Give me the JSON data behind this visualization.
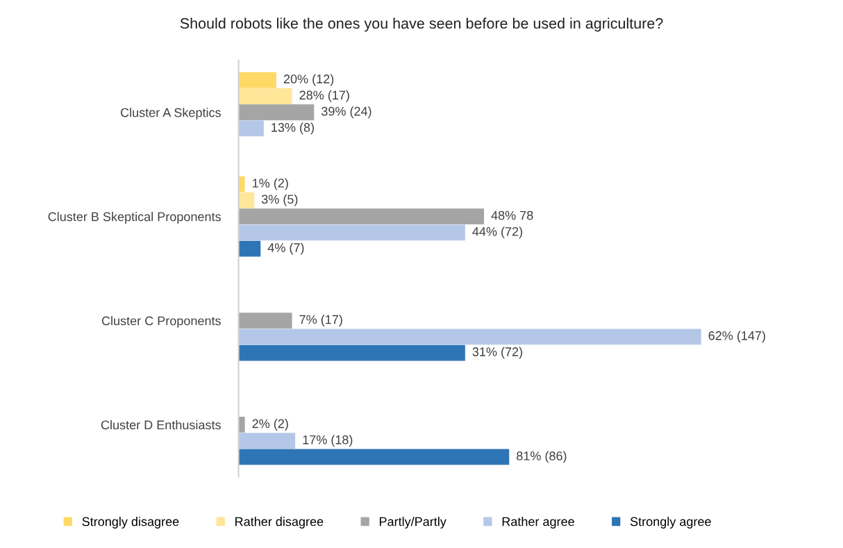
{
  "chart_data": {
    "type": "bar",
    "orientation": "horizontal",
    "title": "Should robots like the ones you have seen before be used in agriculture?",
    "categories": [
      "Cluster A Skeptics",
      "Cluster B Skeptical Proponents",
      "Cluster C Proponents",
      "Cluster D Enthusiasts"
    ],
    "series": [
      {
        "name": "Strongly disagree",
        "color": "#ffd966",
        "values": [
          12,
          2,
          null,
          null
        ],
        "value_labels": [
          "20% (12)",
          "1% (2)",
          null,
          null
        ]
      },
      {
        "name": "Rather disagree",
        "color": "#ffe699",
        "values": [
          17,
          5,
          null,
          null
        ],
        "value_labels": [
          "28% (17)",
          "3% (5)",
          null,
          null
        ]
      },
      {
        "name": "Partly/Partly",
        "color": "#a5a5a5",
        "values": [
          24,
          78,
          17,
          2
        ],
        "value_labels": [
          "39% (24)",
          "48% 78",
          "7% (17)",
          "2% (2)"
        ]
      },
      {
        "name": "Rather agree",
        "color": "#b4c7e7",
        "values": [
          8,
          72,
          147,
          18
        ],
        "value_labels": [
          "13% (8)",
          "44% (72)",
          "62% (147)",
          "17% (18)"
        ]
      },
      {
        "name": "Strongly agree",
        "color": "#2e75b6",
        "values": [
          null,
          7,
          72,
          86
        ],
        "value_labels": [
          null,
          "4% (7)",
          "31% (72)",
          "81% (86)"
        ]
      }
    ],
    "tick_labels": "y",
    "grid": false,
    "legend": "bottom"
  }
}
